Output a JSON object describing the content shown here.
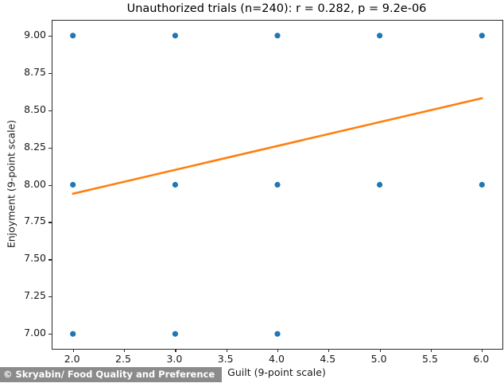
{
  "title": "Unauthorized trials (n=240): r = 0.282, p = 9.2e-06",
  "watermark": "© Skryabin/ Food Quality and Preference",
  "colors": {
    "point": "#1f77b4",
    "trend_line": "#ff7f0e",
    "frame": "#2b2b2b",
    "watermark_bg": "#8b8b8b",
    "watermark_text": "#ffffff"
  },
  "chart_data": {
    "type": "scatter",
    "title": "Unauthorized trials (n=240): r = 0.282, p = 9.2e-06",
    "xlabel": "Guilt (9-point scale)",
    "ylabel": "Enjoyment (9-point scale)",
    "xlim": [
      1.8,
      6.2
    ],
    "ylim": [
      6.9,
      9.1
    ],
    "xtick_values": [
      2.0,
      2.5,
      3.0,
      3.5,
      4.0,
      4.5,
      5.0,
      5.5,
      6.0
    ],
    "xtick_labels": [
      "2.0",
      "2.5",
      "3.0",
      "3.5",
      "4.0",
      "4.5",
      "5.0",
      "5.5",
      "6.0"
    ],
    "ytick_values": [
      7.0,
      7.25,
      7.5,
      7.75,
      8.0,
      8.25,
      8.5,
      8.75,
      9.0
    ],
    "ytick_labels": [
      "7.00",
      "7.25",
      "7.50",
      "7.75",
      "8.00",
      "8.25",
      "8.50",
      "8.75",
      "9.00"
    ],
    "points": [
      [
        2,
        9
      ],
      [
        3,
        9
      ],
      [
        4,
        9
      ],
      [
        5,
        9
      ],
      [
        6,
        9
      ],
      [
        2,
        8
      ],
      [
        3,
        8
      ],
      [
        4,
        8
      ],
      [
        5,
        8
      ],
      [
        6,
        8
      ],
      [
        2,
        7
      ],
      [
        3,
        7
      ],
      [
        4,
        7
      ]
    ],
    "point_radius": 3.6,
    "trend_line": {
      "x": [
        2.0,
        6.0
      ],
      "y": [
        7.94,
        8.58
      ],
      "width": 2.6
    },
    "grid": false,
    "legend": null,
    "stats": {
      "n": 240,
      "r": 0.282,
      "p": "9.2e-06"
    }
  }
}
